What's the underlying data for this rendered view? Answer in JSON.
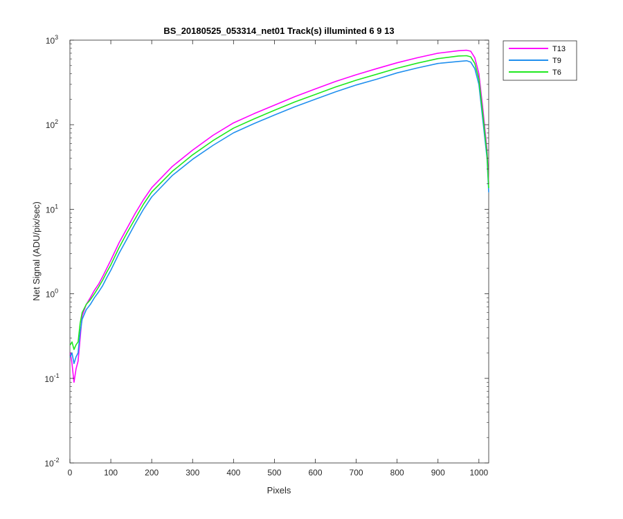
{
  "chart_data": {
    "type": "line",
    "title": "BS_20180525_053314_net01  Track(s) illuminted 6   9  13",
    "xlabel": "Pixels",
    "ylabel": "Net Signal (ADU/pix/sec)",
    "yscale": "log",
    "xlim": [
      0,
      1024
    ],
    "ylim": [
      0.01,
      1000
    ],
    "x_ticks": [
      "0",
      "100",
      "200",
      "300",
      "400",
      "500",
      "600",
      "700",
      "800",
      "900",
      "1000"
    ],
    "y_ticks": [
      {
        "value": 0.01,
        "base": "10",
        "exp": "-2"
      },
      {
        "value": 0.1,
        "base": "10",
        "exp": "-1"
      },
      {
        "value": 1,
        "base": "10",
        "exp": "0"
      },
      {
        "value": 10,
        "base": "10",
        "exp": "1"
      },
      {
        "value": 100,
        "base": "10",
        "exp": "2"
      },
      {
        "value": 1000,
        "base": "10",
        "exp": "3"
      }
    ],
    "grid": false,
    "legend_position": "outside-top-right",
    "series": [
      {
        "name": "T13",
        "color": "#ff00ff",
        "x": [
          1,
          5,
          10,
          15,
          20,
          25,
          30,
          40,
          50,
          60,
          70,
          80,
          90,
          100,
          120,
          140,
          160,
          180,
          200,
          250,
          300,
          350,
          400,
          450,
          500,
          550,
          600,
          650,
          700,
          750,
          800,
          850,
          900,
          950,
          970,
          980,
          990,
          1000,
          1010,
          1020,
          1024
        ],
        "y": [
          0.2,
          0.15,
          0.09,
          0.13,
          0.16,
          0.3,
          0.55,
          0.75,
          0.9,
          1.1,
          1.3,
          1.6,
          2.0,
          2.5,
          4.0,
          6.0,
          9.0,
          13,
          18,
          32,
          50,
          75,
          105,
          135,
          170,
          215,
          265,
          325,
          390,
          460,
          540,
          620,
          700,
          750,
          760,
          740,
          620,
          400,
          150,
          50,
          20
        ]
      },
      {
        "name": "T9",
        "color": "#1f8fee",
        "x": [
          1,
          5,
          10,
          15,
          20,
          25,
          30,
          40,
          50,
          60,
          70,
          80,
          90,
          100,
          120,
          140,
          160,
          180,
          200,
          250,
          300,
          350,
          400,
          450,
          500,
          550,
          600,
          650,
          700,
          750,
          800,
          850,
          900,
          950,
          970,
          980,
          990,
          1000,
          1010,
          1020,
          1024
        ],
        "y": [
          0.18,
          0.2,
          0.15,
          0.18,
          0.2,
          0.35,
          0.5,
          0.65,
          0.75,
          0.9,
          1.05,
          1.25,
          1.55,
          1.9,
          3.0,
          4.5,
          6.8,
          10,
          14,
          25,
          39,
          57,
          80,
          103,
          130,
          163,
          200,
          245,
          295,
          345,
          410,
          470,
          530,
          560,
          570,
          550,
          460,
          300,
          110,
          40,
          16
        ]
      },
      {
        "name": "T6",
        "color": "#1ee81e",
        "x": [
          1,
          5,
          10,
          15,
          20,
          25,
          30,
          40,
          50,
          60,
          70,
          80,
          90,
          100,
          120,
          140,
          160,
          180,
          200,
          250,
          300,
          350,
          400,
          450,
          500,
          550,
          600,
          650,
          700,
          750,
          800,
          850,
          900,
          950,
          970,
          980,
          990,
          1000,
          1010,
          1020,
          1024
        ],
        "y": [
          0.25,
          0.27,
          0.22,
          0.25,
          0.27,
          0.45,
          0.6,
          0.75,
          0.85,
          1.0,
          1.2,
          1.45,
          1.8,
          2.2,
          3.5,
          5.3,
          7.8,
          11.5,
          16,
          28,
          44,
          65,
          91,
          117,
          148,
          186,
          228,
          280,
          336,
          395,
          465,
          535,
          605,
          650,
          655,
          635,
          530,
          345,
          128,
          45,
          18
        ]
      }
    ]
  }
}
